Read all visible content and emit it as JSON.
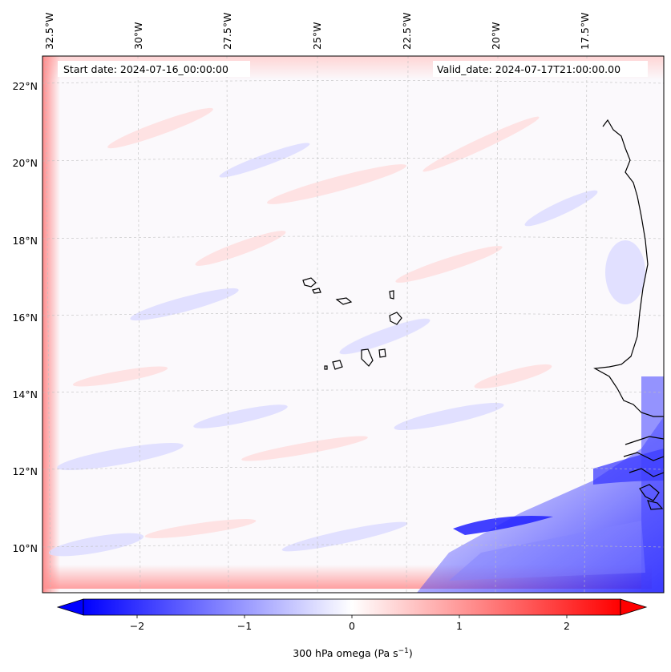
{
  "map": {
    "start_date": "Start date: 2024-07-16_00:00:00",
    "valid_date": "Valid_date: 2024-07-17T21:00:00.00",
    "lon_labels": [
      "32.5°W",
      "30°W",
      "27.5°W",
      "25°W",
      "22.5°W",
      "20°W",
      "17.5°W"
    ],
    "lat_labels": [
      "22°N",
      "20°N",
      "18°N",
      "16°N",
      "14°N",
      "12°N",
      "10°N"
    ],
    "gridlines": "dashed",
    "colorbar": {
      "label": "300 hPa omega (Pa s",
      "label_sup": "−1",
      "label_end": ")",
      "ticks": [
        "−2",
        "−1",
        "0",
        "1",
        "2"
      ],
      "tick_values": [
        -2,
        -1,
        0,
        1,
        2
      ],
      "range": [
        -2.5,
        2.5
      ],
      "colormap": "bwr",
      "extend": "both",
      "colors": {
        "min": "#0000ff",
        "mid": "#ffffff",
        "max": "#ff0000"
      }
    }
  }
}
